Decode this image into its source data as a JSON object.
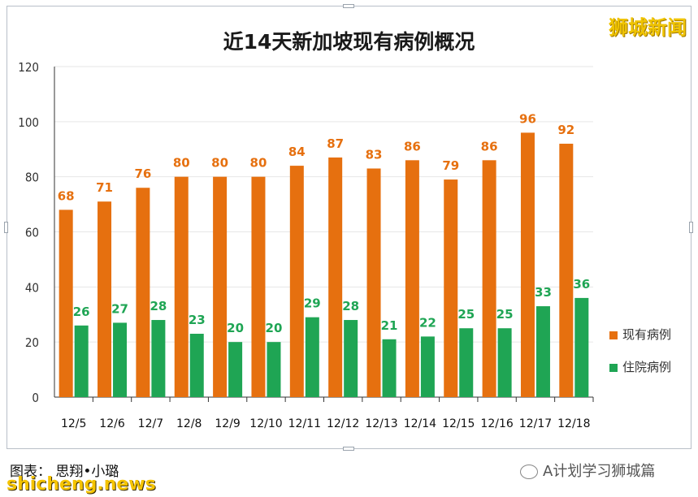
{
  "watermark": "狮城新闻",
  "caption": "图表： 思翔•小璐",
  "site": "shicheng.news",
  "wechat_account": "A计划学习狮城篇",
  "colors": {
    "current": "#E6700F",
    "hospital": "#1FA554",
    "axis": "#333333",
    "grid": "#e6e6e6"
  },
  "chart_data": {
    "type": "bar",
    "title": "近14天新加坡现有病例概况",
    "categories": [
      "12/5",
      "12/6",
      "12/7",
      "12/8",
      "12/9",
      "12/10",
      "12/11",
      "12/12",
      "12/13",
      "12/14",
      "12/15",
      "12/16",
      "12/17",
      "12/18"
    ],
    "series": [
      {
        "name": "现有病例",
        "values": [
          68,
          71,
          76,
          80,
          80,
          80,
          84,
          87,
          83,
          86,
          79,
          86,
          96,
          92
        ]
      },
      {
        "name": "住院病例",
        "values": [
          26,
          27,
          28,
          23,
          20,
          20,
          29,
          28,
          21,
          22,
          25,
          25,
          33,
          36
        ]
      }
    ],
    "ylim": [
      0,
      120
    ],
    "yticks": [
      0,
      20,
      40,
      60,
      80,
      100,
      120
    ],
    "grid": true,
    "legend": "right"
  }
}
